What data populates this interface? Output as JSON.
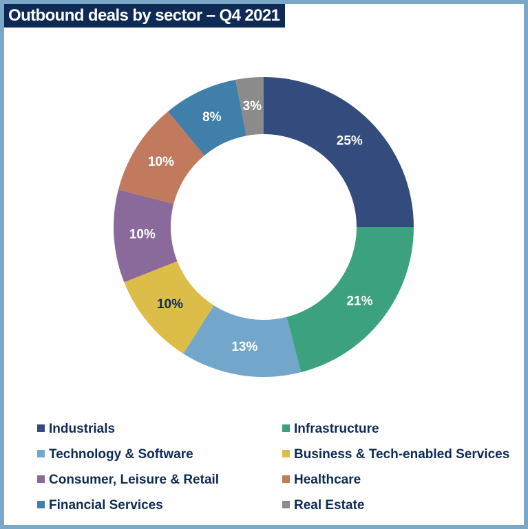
{
  "title": "Outbound deals by sector – Q4 2021",
  "chart_data": {
    "type": "pie",
    "title": "Outbound deals by sector – Q4 2021",
    "donut": true,
    "legend": "bottom",
    "slices": [
      {
        "name": "Industrials",
        "value": 25,
        "label": "25%",
        "color": "#344b7e",
        "label_color": "#ffffff"
      },
      {
        "name": "Infrastructure",
        "value": 21,
        "label": "21%",
        "color": "#3ba17e",
        "label_color": "#ffffff"
      },
      {
        "name": "Technology & Software",
        "value": 13,
        "label": "13%",
        "color": "#72a7cb",
        "label_color": "#ffffff"
      },
      {
        "name": "Business & Tech-enabled Services",
        "value": 10,
        "label": "10%",
        "color": "#dcbd48",
        "label_color": "#0e2a55"
      },
      {
        "name": "Consumer, Leisure & Retail",
        "value": 10,
        "label": "10%",
        "color": "#8a6a9a",
        "label_color": "#ffffff"
      },
      {
        "name": "Healthcare",
        "value": 10,
        "label": "10%",
        "color": "#c27a5e",
        "label_color": "#ffffff"
      },
      {
        "name": "Financial Services",
        "value": 8,
        "label": "8%",
        "color": "#3f7fa9",
        "label_color": "#ffffff"
      },
      {
        "name": "Real Estate",
        "value": 3,
        "label": "3%",
        "color": "#8b8b8b",
        "label_color": "#ffffff"
      }
    ]
  }
}
